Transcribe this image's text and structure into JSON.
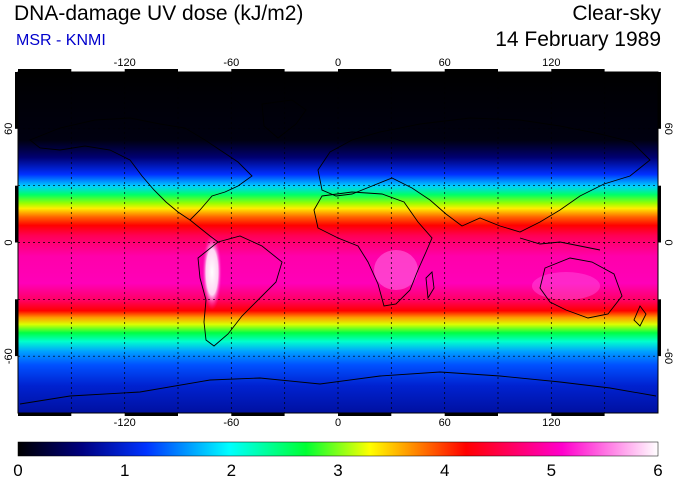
{
  "header": {
    "title": "DNA-damage UV dose (kJ/m2)",
    "subtitle": "MSR - KNMI",
    "sky_condition": "Clear-sky",
    "date": "14 February 1989"
  },
  "map": {
    "projection": "equirectangular",
    "lon_range": [
      -180,
      180
    ],
    "lat_range": [
      -90,
      90
    ],
    "lon_ticks": [
      "-120",
      "-60",
      "0",
      "60",
      "120"
    ],
    "lat_ticks": [
      "60",
      "0",
      "-60"
    ],
    "grid_lon_values": [
      -150,
      -120,
      -90,
      -60,
      -30,
      0,
      30,
      60,
      90,
      120,
      150
    ],
    "grid_lat_values": [
      60,
      30,
      0,
      -30,
      -60
    ]
  },
  "colorbar": {
    "min": 0,
    "max": 6,
    "tick_labels": [
      "0",
      "1",
      "2",
      "3",
      "4",
      "5",
      "6"
    ],
    "colors": [
      "#000000",
      "#000080",
      "#0033ff",
      "#00ffff",
      "#00ff33",
      "#ffff00",
      "#ff0000",
      "#ff00cc",
      "#ffffff"
    ]
  }
}
